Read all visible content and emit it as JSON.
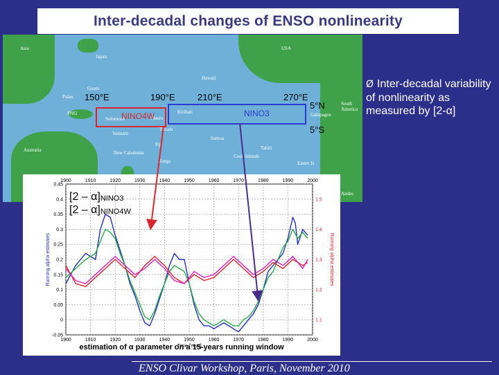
{
  "title": "Inter-decadal changes of ENSO nonlinearity",
  "map": {
    "place_labels": [
      "Asia",
      "Japan",
      "USA",
      "Hawaii",
      "Guam",
      "Palau",
      "PNG",
      "Solomons",
      "Nauru",
      "Kiribati",
      "Tuvalu",
      "Samoa",
      "Vanuatu",
      "Fiji",
      "Australia",
      "New Caledonia",
      "Tonga",
      "Cook Islands",
      "Tahiti",
      "Easter Is",
      "South America",
      "Galapagos",
      "Andes"
    ],
    "longitudes": [
      "150°E",
      "190°E",
      "210°E",
      "270°E"
    ],
    "latitudes": [
      "5°N",
      "5°S"
    ],
    "regions": [
      {
        "name": "NINO4W",
        "color": "#d8262e"
      },
      {
        "name": "NINO3",
        "color": "#2a3ad2"
      }
    ]
  },
  "bullet": {
    "marker": "Ø",
    "text": "Inter-decadal variability of nonlinearity as measured by [2-α]"
  },
  "chart_data": {
    "type": "line",
    "x_label": "Time [Year]",
    "y_left_label": "Running alpha estimates",
    "y_right_label": "Running alpha estimates",
    "x_ticks": [
      "1900",
      "1910",
      "1920",
      "1930",
      "1940",
      "1950",
      "1960",
      "1970",
      "1980",
      "1990",
      "2000"
    ],
    "y_left_ticks": [
      "0.45",
      "0.4",
      "0.35",
      "0.3",
      "0.25",
      "0.2",
      "0.15",
      "0.1",
      "0.05",
      "0",
      "-0.05"
    ],
    "y_right_ticks": [
      "1.5",
      "1.4",
      "1.3",
      "1.2",
      "1.1"
    ],
    "xlim": [
      1900,
      2000
    ],
    "ylim_left": [
      -0.05,
      0.45
    ],
    "ylim_right": [
      1.05,
      1.55
    ],
    "legend": [
      {
        "label_main": "[2 – α]",
        "label_sub": "NINO3"
      },
      {
        "label_main": "[2 – α]",
        "label_sub": "NINO4W"
      }
    ],
    "caption": "estimation of α parameter on a 15-years running window",
    "colors": {
      "blue": "#2030b8",
      "green": "#2aa84a",
      "red": "#d8262e",
      "magenta": "#e020c0"
    },
    "series": [
      {
        "color": "blue",
        "x": [
          1900,
          1904,
          1908,
          1912,
          1914,
          1916,
          1918,
          1920,
          1922,
          1924,
          1926,
          1928,
          1930,
          1932,
          1934,
          1936,
          1938,
          1940,
          1942,
          1944,
          1946,
          1948,
          1950,
          1952,
          1954,
          1956,
          1958,
          1960,
          1962,
          1964,
          1966,
          1968,
          1970,
          1972,
          1974,
          1976,
          1978,
          1980,
          1982,
          1984,
          1986,
          1988,
          1990,
          1992,
          1993,
          1994,
          1996,
          1998
        ],
        "y": [
          0.12,
          0.18,
          0.22,
          0.2,
          0.3,
          0.35,
          0.34,
          0.28,
          0.23,
          0.18,
          0.12,
          0.08,
          0.03,
          -0.01,
          -0.02,
          0.02,
          0.07,
          0.12,
          0.18,
          0.22,
          0.2,
          0.2,
          0.12,
          0.05,
          0.0,
          -0.02,
          -0.02,
          -0.03,
          -0.02,
          -0.01,
          -0.02,
          -0.03,
          -0.04,
          -0.02,
          0.0,
          0.02,
          0.05,
          0.1,
          0.16,
          0.18,
          0.2,
          0.22,
          0.27,
          0.34,
          0.32,
          0.25,
          0.3,
          0.28
        ]
      },
      {
        "color": "green",
        "x": [
          1900,
          1904,
          1908,
          1912,
          1914,
          1916,
          1918,
          1920,
          1922,
          1924,
          1926,
          1928,
          1930,
          1932,
          1934,
          1936,
          1938,
          1940,
          1942,
          1944,
          1946,
          1948,
          1950,
          1952,
          1954,
          1956,
          1958,
          1960,
          1962,
          1964,
          1966,
          1968,
          1970,
          1972,
          1974,
          1976,
          1978,
          1980,
          1982,
          1984,
          1986,
          1988,
          1990,
          1992,
          1994,
          1996,
          1998
        ],
        "y": [
          0.14,
          0.17,
          0.2,
          0.22,
          0.26,
          0.3,
          0.29,
          0.27,
          0.22,
          0.18,
          0.13,
          0.09,
          0.05,
          0.01,
          0.0,
          0.03,
          0.08,
          0.12,
          0.16,
          0.18,
          0.17,
          0.16,
          0.12,
          0.06,
          0.02,
          0.0,
          -0.01,
          -0.02,
          -0.01,
          0.0,
          -0.01,
          -0.02,
          -0.02,
          0.0,
          0.01,
          0.03,
          0.06,
          0.1,
          0.14,
          0.16,
          0.2,
          0.24,
          0.26,
          0.3,
          0.27,
          0.29,
          0.27
        ]
      },
      {
        "color": "red",
        "x": [
          1900,
          1904,
          1908,
          1912,
          1916,
          1920,
          1924,
          1928,
          1932,
          1936,
          1940,
          1944,
          1948,
          1952,
          1956,
          1960,
          1964,
          1968,
          1972,
          1976,
          1980,
          1984,
          1988,
          1992,
          1996,
          1998
        ],
        "y": [
          1.28,
          1.22,
          1.21,
          1.24,
          1.27,
          1.3,
          1.27,
          1.24,
          1.28,
          1.31,
          1.28,
          1.24,
          1.22,
          1.25,
          1.23,
          1.24,
          1.27,
          1.3,
          1.27,
          1.24,
          1.26,
          1.29,
          1.27,
          1.3,
          1.28,
          1.29
        ]
      },
      {
        "color": "magenta",
        "x": [
          1900,
          1904,
          1908,
          1912,
          1916,
          1920,
          1924,
          1928,
          1932,
          1936,
          1940,
          1944,
          1948,
          1952,
          1956,
          1960,
          1964,
          1968,
          1972,
          1976,
          1980,
          1984,
          1988,
          1992,
          1996,
          1998
        ],
        "y": [
          1.27,
          1.23,
          1.22,
          1.25,
          1.28,
          1.31,
          1.28,
          1.25,
          1.27,
          1.3,
          1.27,
          1.23,
          1.22,
          1.26,
          1.24,
          1.25,
          1.28,
          1.31,
          1.28,
          1.25,
          1.27,
          1.3,
          1.28,
          1.31,
          1.27,
          1.3
        ]
      }
    ]
  },
  "footer": "ENSO Clivar Workshop, Paris, November 2010"
}
